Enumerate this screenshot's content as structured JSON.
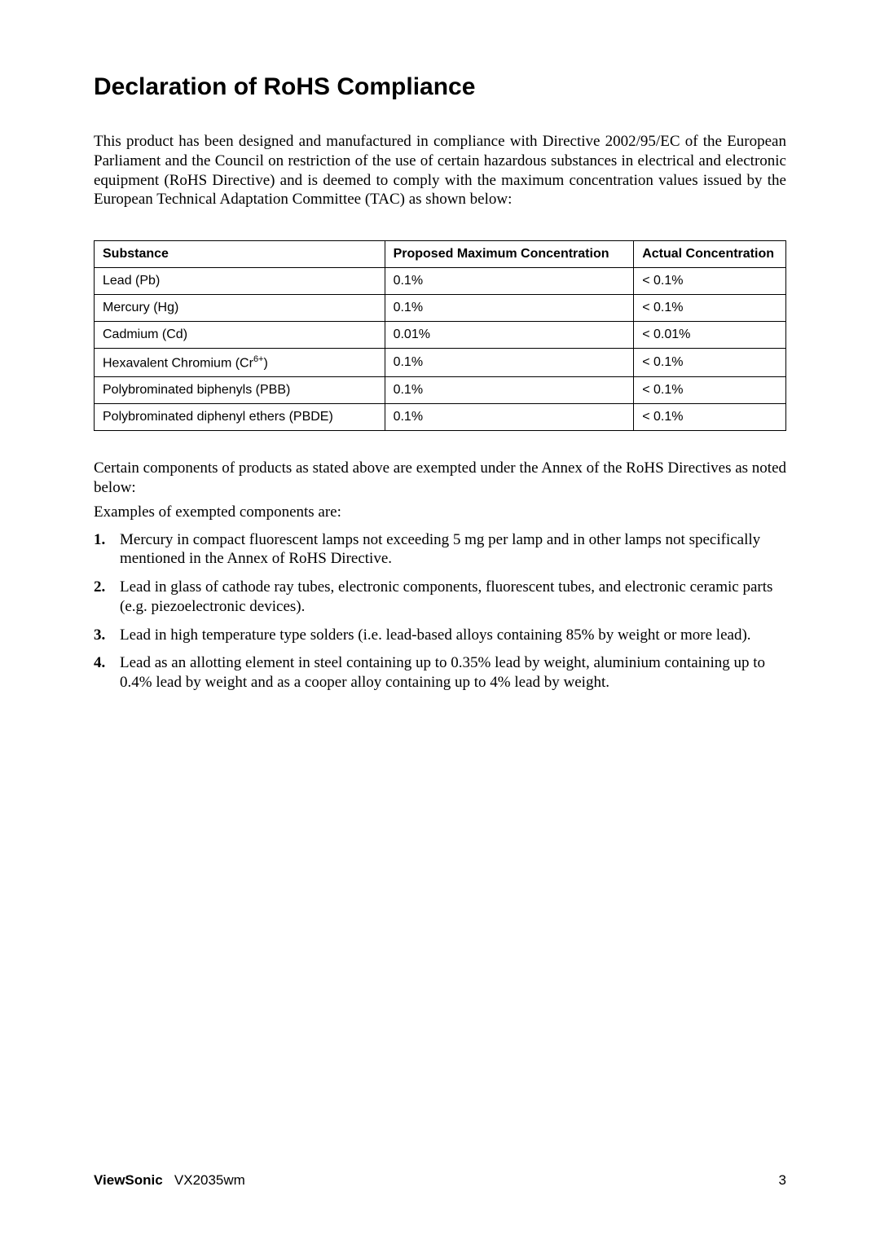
{
  "title": "Declaration of RoHS Compliance",
  "intro": "This product has been designed and manufactured in compliance with Directive 2002/95/EC of the European Parliament and the Council on restriction of the use of certain hazardous substances in electrical and electronic equipment (RoHS Directive) and is deemed to comply with the maximum concentration values issued by the European Technical Adaptation Committee (TAC) as shown below:",
  "table": {
    "headers": [
      "Substance",
      "Proposed Maximum Concentration",
      "Actual Concentration"
    ],
    "rows": [
      {
        "sub_pre": "Lead (Pb)",
        "sup": "",
        "sub_post": "",
        "pmc": "0.1%",
        "act": "< 0.1%"
      },
      {
        "sub_pre": "Mercury (Hg)",
        "sup": "",
        "sub_post": "",
        "pmc": "0.1%",
        "act": "< 0.1%"
      },
      {
        "sub_pre": "Cadmium (Cd)",
        "sup": "",
        "sub_post": "",
        "pmc": "0.01%",
        "act": "< 0.01%"
      },
      {
        "sub_pre": "Hexavalent Chromium (Cr",
        "sup": "6+",
        "sub_post": ")",
        "pmc": "0.1%",
        "act": "< 0.1%"
      },
      {
        "sub_pre": "Polybrominated biphenyls (PBB)",
        "sup": "",
        "sub_post": "",
        "pmc": "0.1%",
        "act": "< 0.1%"
      },
      {
        "sub_pre": "Polybrominated diphenyl ethers (PBDE)",
        "sup": "",
        "sub_post": "",
        "pmc": "0.1%",
        "act": "< 0.1%"
      }
    ]
  },
  "para_after_table": "Certain components of products as stated above are exempted under the Annex of the RoHS Directives as noted below:",
  "examples_intro": "Examples of exempted components are:",
  "list": [
    "Mercury in compact fluorescent lamps not exceeding 5 mg per lamp and in other lamps not specifically mentioned in the Annex of RoHS Directive.",
    "Lead in glass of cathode ray tubes, electronic components, fluorescent tubes, and electronic ceramic parts (e.g. piezoelectronic devices).",
    "Lead in high temperature type solders (i.e. lead-based alloys containing 85% by weight or more lead).",
    "Lead as an allotting element in steel containing up to 0.35% lead by weight, aluminium containing up to 0.4% lead by weight and as a cooper alloy containing up to 4% lead by weight."
  ],
  "list_numbers": [
    "1.",
    "2.",
    "3.",
    "4."
  ],
  "footer": {
    "brand": "ViewSonic",
    "model": "VX2035wm",
    "page": "3"
  }
}
